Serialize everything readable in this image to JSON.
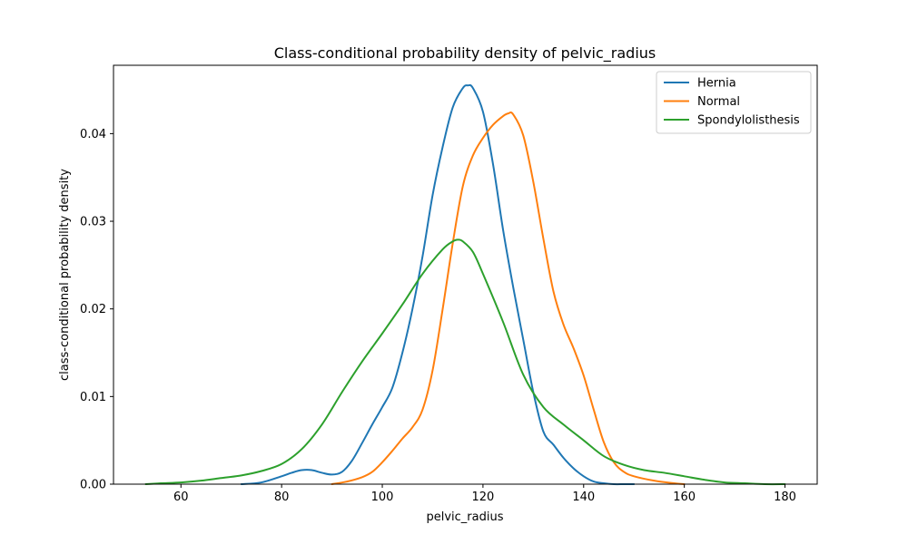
{
  "chart_data": {
    "type": "line",
    "title": "Class-conditional probability density of pelvic_radius",
    "xlabel": "pelvic_radius",
    "ylabel": "class-conditional probability density",
    "xlim": [
      46.6,
      186.4
    ],
    "ylim": [
      0,
      0.0478
    ],
    "x_ticks": [
      {
        "value": 60,
        "label": "60"
      },
      {
        "value": 80,
        "label": "80"
      },
      {
        "value": 100,
        "label": "100"
      },
      {
        "value": 120,
        "label": "120"
      },
      {
        "value": 140,
        "label": "140"
      },
      {
        "value": 160,
        "label": "160"
      },
      {
        "value": 180,
        "label": "180"
      }
    ],
    "y_ticks": [
      {
        "value": 0.0,
        "label": "0.00"
      },
      {
        "value": 0.01,
        "label": "0.01"
      },
      {
        "value": 0.02,
        "label": "0.02"
      },
      {
        "value": 0.03,
        "label": "0.03"
      },
      {
        "value": 0.04,
        "label": "0.04"
      }
    ],
    "grid": false,
    "legend_position": "top-right",
    "series": [
      {
        "name": "Hernia",
        "color": "#1f77b4",
        "x": [
          72,
          76,
          80,
          82,
          84,
          86,
          88,
          90,
          92,
          94,
          96,
          98,
          100,
          102,
          104,
          106,
          108,
          110,
          112,
          114,
          116,
          117,
          118,
          120,
          122,
          124,
          126,
          128,
          130,
          132,
          134,
          136,
          138,
          140,
          142,
          144,
          146,
          148,
          150
        ],
        "y": [
          0.0,
          0.0002,
          0.0009,
          0.0013,
          0.0016,
          0.0016,
          0.0013,
          0.0011,
          0.0014,
          0.0027,
          0.0047,
          0.0068,
          0.0088,
          0.011,
          0.015,
          0.02,
          0.026,
          0.033,
          0.0385,
          0.043,
          0.0452,
          0.0455,
          0.0452,
          0.0425,
          0.0365,
          0.029,
          0.0225,
          0.0165,
          0.0105,
          0.006,
          0.0045,
          0.003,
          0.0018,
          0.0009,
          0.0003,
          0.0001,
          0.0,
          0.0,
          0.0
        ]
      },
      {
        "name": "Normal",
        "color": "#ff7f0e",
        "x": [
          90,
          93,
          96,
          98,
          100,
          102,
          104,
          106,
          108,
          110,
          112,
          114,
          116,
          118,
          120,
          122,
          124,
          125,
          126,
          128,
          130,
          132,
          134,
          136,
          138,
          140,
          142,
          144,
          146,
          148,
          150,
          154,
          158,
          160
        ],
        "y": [
          0.0,
          0.0003,
          0.0008,
          0.0014,
          0.0025,
          0.0038,
          0.0052,
          0.0065,
          0.0085,
          0.013,
          0.02,
          0.0275,
          0.034,
          0.0375,
          0.0395,
          0.041,
          0.042,
          0.0423,
          0.0422,
          0.0398,
          0.0345,
          0.028,
          0.022,
          0.0182,
          0.0155,
          0.0124,
          0.0085,
          0.0048,
          0.0025,
          0.0014,
          0.0009,
          0.0004,
          0.0001,
          0.0
        ]
      },
      {
        "name": "Spondylolisthesis",
        "color": "#2ca02c",
        "x": [
          53,
          56,
          60,
          64,
          68,
          72,
          76,
          80,
          84,
          88,
          92,
          96,
          100,
          104,
          108,
          112,
          114,
          115,
          116,
          118,
          120,
          124,
          128,
          132,
          136,
          140,
          144,
          148,
          152,
          156,
          160,
          164,
          168,
          172,
          176,
          180
        ],
        "y": [
          0.0,
          0.0001,
          0.0002,
          0.0004,
          0.0007,
          0.001,
          0.0015,
          0.0023,
          0.004,
          0.0068,
          0.0105,
          0.014,
          0.0172,
          0.0205,
          0.024,
          0.0268,
          0.0277,
          0.0279,
          0.0277,
          0.0265,
          0.024,
          0.0185,
          0.0125,
          0.0088,
          0.0068,
          0.005,
          0.0032,
          0.0022,
          0.0016,
          0.0013,
          0.0009,
          0.0005,
          0.0002,
          0.0001,
          0.0,
          0.0
        ]
      }
    ]
  }
}
